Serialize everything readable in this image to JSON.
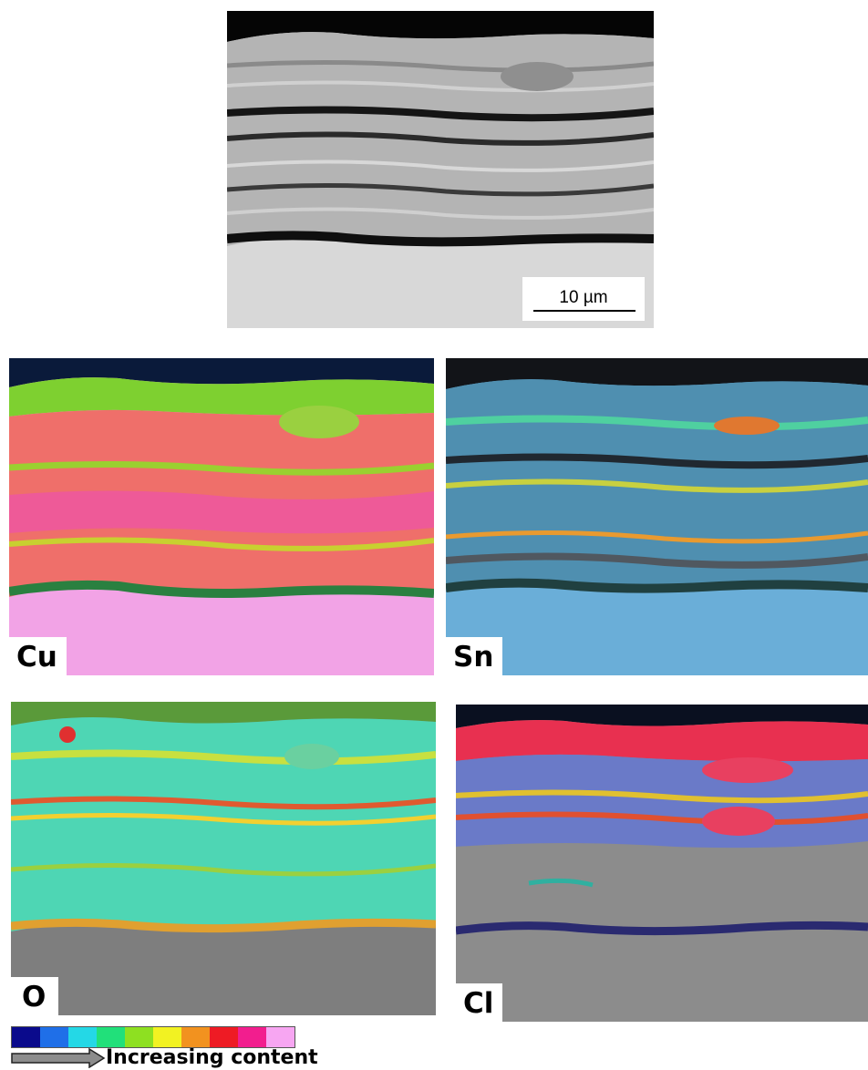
{
  "scale_bar": {
    "label": "10 µm"
  },
  "maps": [
    {
      "id": "cu",
      "element": "Cu"
    },
    {
      "id": "sn",
      "element": "Sn"
    },
    {
      "id": "o",
      "element": "O"
    },
    {
      "id": "cl",
      "element": "Cl"
    }
  ],
  "legend": {
    "caption": "Increasing content",
    "colors": [
      "#0a0a8c",
      "#1f6fe8",
      "#24d8e6",
      "#21e07a",
      "#8ee021",
      "#f2f222",
      "#f2921f",
      "#ee1b24",
      "#f21e8e",
      "#f7a6f2"
    ]
  },
  "palette": {
    "sem_gray": "#b8b8b8",
    "sem_dark": "#1a1a1a",
    "cu_base": "#f2a3e6",
    "sn_base": "#6aaed8",
    "o_base": "#7e7e7e",
    "cl_base": "#8c8c8c"
  }
}
